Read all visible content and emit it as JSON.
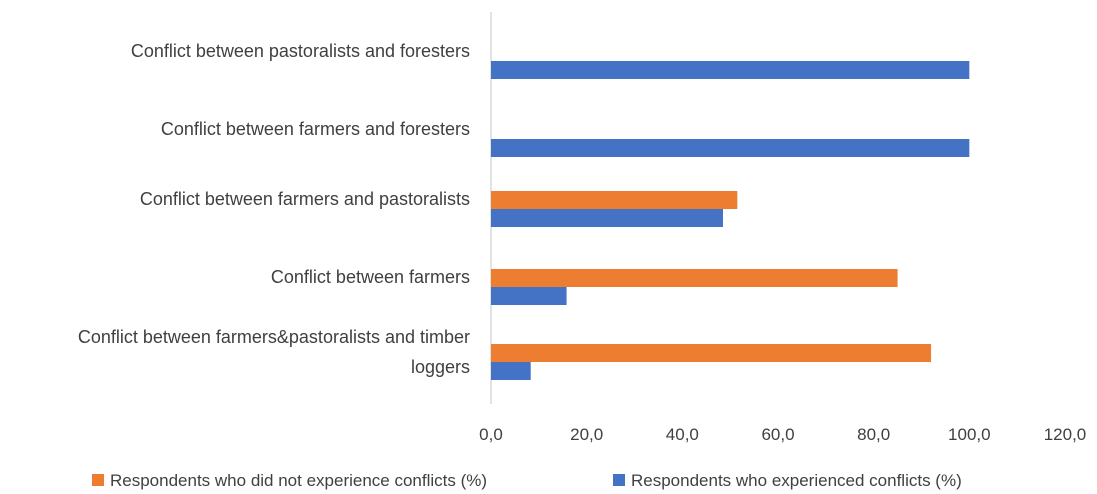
{
  "chart_data": {
    "type": "bar",
    "orientation": "horizontal",
    "categories": [
      [
        "Conflict between pastoralists and foresters"
      ],
      [
        "Conflict between farmers and foresters"
      ],
      [
        "Conflict between farmers and pastoralists"
      ],
      [
        "Conflict between farmers"
      ],
      [
        "Conflict between farmers&pastoralists and timber",
        "loggers"
      ]
    ],
    "series": [
      {
        "name": "Respondents who did not experience conflicts  (%)",
        "color": "#ED7D31",
        "values": [
          0,
          0,
          51.5,
          85.0,
          92.0
        ]
      },
      {
        "name": "Respondents who experienced conflicts  (%)",
        "color": "#4472C4",
        "values": [
          100.0,
          100.0,
          48.5,
          15.8,
          8.3
        ]
      }
    ],
    "xlim": [
      0,
      120
    ],
    "xticks": [
      "0,0",
      "20,0",
      "40,0",
      "60,0",
      "80,0",
      "100,0",
      "120,0"
    ],
    "grid": false,
    "legend_position": "bottom",
    "axis_color": "#D9D9D9"
  }
}
